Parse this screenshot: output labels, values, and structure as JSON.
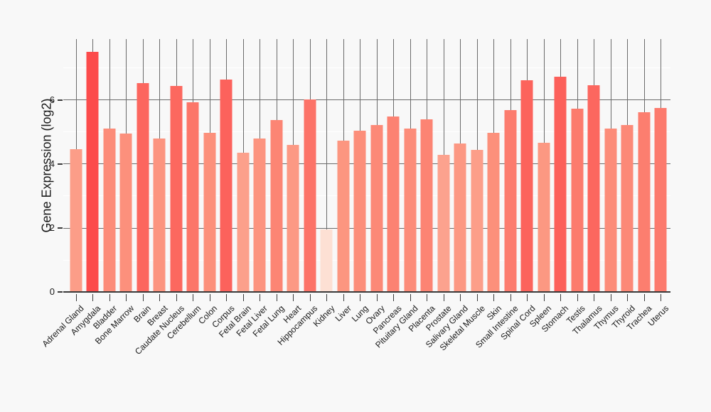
{
  "chart_data": {
    "type": "bar",
    "title": "",
    "xlabel": "",
    "ylabel": "Gene Expression (log2)",
    "categories": [
      "Adrenal Gland",
      "Amygdala",
      "Bladder",
      "Bone Marrow",
      "Brain",
      "Breast",
      "Caudate Nucleus",
      "Cerebellum",
      "Colon",
      "Corpus",
      "Fetal Brain",
      "Fetal Liver",
      "Fetal Lung",
      "Heart",
      "Hippocampus",
      "Kidney",
      "Liver",
      "Lung",
      "Ovary",
      "Pancreas",
      "Pituitary Gland",
      "Placenta",
      "Prostate",
      "Salivary Gland",
      "Skeletal Muscle",
      "Skin",
      "Small Intestine",
      "Spinal Cord",
      "Spleen",
      "Stomach",
      "Testis",
      "Thalamus",
      "Thymus",
      "Thyroid",
      "Trachea",
      "Uterus"
    ],
    "values": [
      4.47,
      7.52,
      5.1,
      4.95,
      6.53,
      4.81,
      6.45,
      5.94,
      4.98,
      6.65,
      4.36,
      4.8,
      5.38,
      4.61,
      6.02,
      1.96,
      4.74,
      5.04,
      5.22,
      5.48,
      5.11,
      5.4,
      4.28,
      4.65,
      4.45,
      4.98,
      5.69,
      6.62,
      4.67,
      6.73,
      5.74,
      6.47,
      5.1,
      5.22,
      5.63,
      5.76
    ],
    "ylim": [
      0,
      7.91
    ],
    "yticks_major": [
      0,
      2,
      4,
      6
    ],
    "yticks_minor": [
      1,
      3,
      5,
      7
    ],
    "grid": {
      "vertical_per_category": true,
      "horizontal_major": true,
      "horizontal_minor": true
    },
    "legend": null,
    "colorscale": {
      "mode": "value_minmax",
      "stops": [
        "#fde0d4",
        "#fc9680",
        "#fc4b4b"
      ]
    }
  },
  "colors": {
    "background": "#f8f8f8",
    "grid_major": "#6b6b6b",
    "grid_minor": "#ffffff",
    "axis": "#3a3a3a",
    "text": "#1a1a1a"
  }
}
